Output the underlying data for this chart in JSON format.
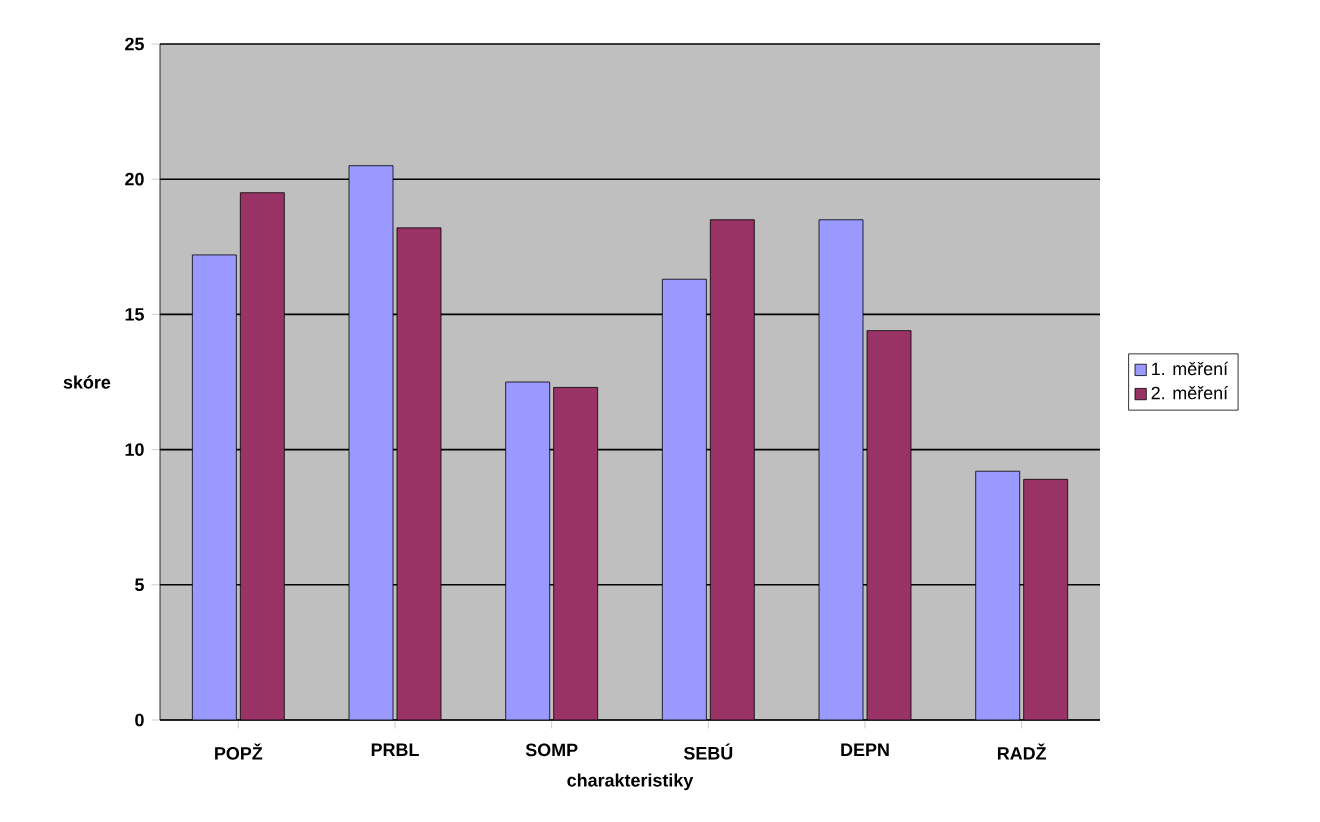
{
  "chart_data": {
    "type": "bar",
    "xlabel": "charakteristiky",
    "ylabel": "skóre",
    "categories": [
      "POPŽ",
      "PRBL",
      "SOMP",
      "SEBÚ",
      "DEPN",
      "RADŽ"
    ],
    "series": [
      {
        "name": "1. měření",
        "color": "#9999ff",
        "values": [
          17.2,
          20.5,
          12.5,
          16.3,
          18.5,
          9.2
        ]
      },
      {
        "name": "2. měření",
        "color": "#993366",
        "values": [
          19.5,
          18.2,
          12.3,
          18.5,
          14.4,
          8.9
        ]
      }
    ],
    "ylim": [
      0,
      25
    ],
    "yticks": [
      0,
      5,
      10,
      15,
      20,
      25
    ],
    "grid": "y",
    "legend": "right"
  }
}
